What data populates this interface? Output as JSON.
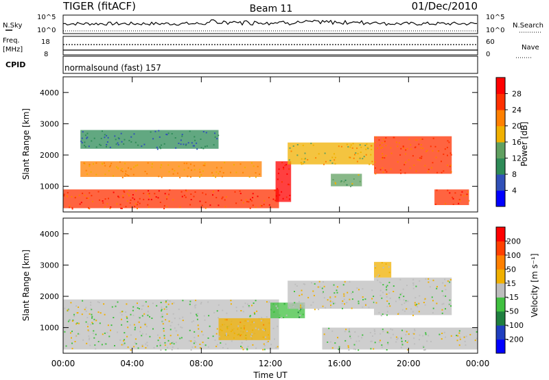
{
  "header": {
    "radar": "TIGER (fitACF)",
    "beam": "Beam 11",
    "date": "01/Dec/2010"
  },
  "status_panels": {
    "nsky_label": "N.Sky",
    "nsearch_label": "N.Search",
    "nsky_ticks": [
      "10^5",
      "10^0"
    ],
    "nsearch_ticks": [
      "10^5",
      "10^0"
    ],
    "freq_label_line1": "Freq.",
    "freq_label_line2": "[MHz]",
    "freq_ticks": [
      "18",
      "8"
    ],
    "nave_label": "Nave",
    "nave_ticks": [
      "60",
      "0"
    ],
    "cpid_label": "CPID",
    "cpid_value": "normalsound (fast) 157"
  },
  "colors": {
    "power_scale": [
      "#0000ff",
      "#3050b8",
      "#2e8b57",
      "#60a060",
      "#f0b000",
      "#ff8000",
      "#ff3000",
      "#ff0000"
    ],
    "velocity_scale": [
      "#0000ff",
      "#1f3fbf",
      "#1f7f3f",
      "#40c040",
      "#bdbdbd",
      "#f0b000",
      "#ff8000",
      "#ff4000",
      "#ff0000"
    ]
  },
  "chart_data": [
    {
      "type": "heatmap",
      "name": "power",
      "ylabel": "Slant Range [km]",
      "xlabel": "",
      "ylim": [
        180,
        4500
      ],
      "xlim": [
        0,
        24
      ],
      "y_ticks": [
        "1000",
        "2000",
        "3000",
        "4000"
      ],
      "colorbar_label": "Power [dB]",
      "colorbar_ticks": [
        "4",
        "8",
        "12",
        "16",
        "20",
        "24",
        "28"
      ],
      "colorbar_range": [
        0,
        32
      ],
      "features": [
        {
          "t0": 0.0,
          "t1": 12.5,
          "r0": 300,
          "r1": 900,
          "value": 26
        },
        {
          "t0": 1.0,
          "t1": 11.5,
          "r0": 1300,
          "r1": 1800,
          "value": 20
        },
        {
          "t0": 12.3,
          "t1": 13.2,
          "r0": 500,
          "r1": 1800,
          "value": 29
        },
        {
          "t0": 13.0,
          "t1": 18.0,
          "r0": 1700,
          "r1": 2400,
          "value": 18
        },
        {
          "t0": 15.5,
          "t1": 17.3,
          "r0": 1000,
          "r1": 1400,
          "value": 14
        },
        {
          "t0": 18.0,
          "t1": 22.5,
          "r0": 1400,
          "r1": 2600,
          "value": 24
        },
        {
          "t0": 21.5,
          "t1": 23.5,
          "r0": 400,
          "r1": 900,
          "value": 26
        },
        {
          "t0": 1.0,
          "t1": 9.0,
          "r0": 2200,
          "r1": 2800,
          "value": 8
        }
      ]
    },
    {
      "type": "heatmap",
      "name": "velocity",
      "ylabel": "Slant Range [km]",
      "xlabel": "Time UT",
      "ylim": [
        180,
        4500
      ],
      "xlim": [
        0,
        24
      ],
      "x_ticks": [
        "00:00",
        "04:00",
        "08:00",
        "12:00",
        "16:00",
        "20:00",
        "00:00"
      ],
      "y_ticks": [
        "1000",
        "2000",
        "3000",
        "4000"
      ],
      "colorbar_label": "Velocity [m s⁻¹]",
      "colorbar_ticks": [
        "200",
        "100",
        "50",
        "15",
        "-15",
        "-50",
        "-100",
        "-200"
      ],
      "colorbar_range": [
        -250,
        250
      ],
      "features": [
        {
          "t0": 0.0,
          "t1": 12.5,
          "r0": 300,
          "r1": 1900,
          "value": 0
        },
        {
          "t0": 9.0,
          "t1": 12.0,
          "r0": 600,
          "r1": 1300,
          "value": 40
        },
        {
          "t0": 12.0,
          "t1": 14.0,
          "r0": 1300,
          "r1": 1800,
          "value": -60
        },
        {
          "t0": 13.0,
          "t1": 18.0,
          "r0": 1600,
          "r1": 2500,
          "value": 0
        },
        {
          "t0": 18.0,
          "t1": 22.5,
          "r0": 1400,
          "r1": 2600,
          "value": 0
        },
        {
          "t0": 18.0,
          "t1": 19.0,
          "r0": 2600,
          "r1": 3100,
          "value": 40
        },
        {
          "t0": 15.0,
          "t1": 24.0,
          "r0": 300,
          "r1": 1000,
          "value": 0
        }
      ]
    }
  ]
}
